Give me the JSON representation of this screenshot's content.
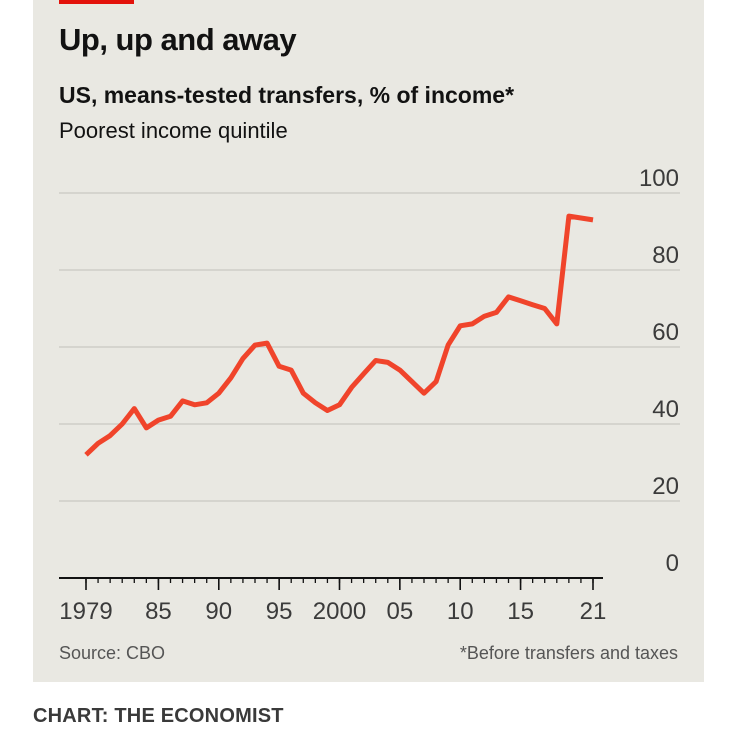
{
  "header": {
    "title": "Up, up and away",
    "subtitle": "US, means-tested transfers, % of income*",
    "subsubtitle": "Poorest income quintile"
  },
  "footer": {
    "source": "Source: CBO",
    "footnote": "*Before transfers and taxes",
    "credit": "CHART: THE ECONOMIST"
  },
  "colors": {
    "accent": "#e3120b",
    "line": "#f0442b",
    "background": "#e9e8e2"
  },
  "chart_data": {
    "type": "line",
    "title": "Up, up and away",
    "subtitle": "US, means-tested transfers, % of income*",
    "xlabel": "",
    "ylabel": "",
    "ylim": [
      0,
      100
    ],
    "xlim": [
      1979,
      2021
    ],
    "y_ticks": [
      0,
      20,
      40,
      60,
      80,
      100
    ],
    "y_tick_labels": [
      "0",
      "20",
      "40",
      "60",
      "80",
      "100"
    ],
    "x_ticks": [
      1979,
      1985,
      1990,
      1995,
      2000,
      2005,
      2010,
      2015,
      2021
    ],
    "x_tick_labels": [
      "1979",
      "85",
      "90",
      "95",
      "2000",
      "05",
      "10",
      "15",
      "21"
    ],
    "grid": true,
    "series": [
      {
        "name": "Poorest income quintile",
        "x": [
          1979,
          1980,
          1981,
          1982,
          1983,
          1984,
          1985,
          1986,
          1987,
          1988,
          1989,
          1990,
          1991,
          1992,
          1993,
          1994,
          1995,
          1996,
          1997,
          1998,
          1999,
          2000,
          2001,
          2002,
          2003,
          2004,
          2005,
          2006,
          2007,
          2008,
          2009,
          2010,
          2011,
          2012,
          2013,
          2014,
          2015,
          2016,
          2017,
          2018,
          2019,
          2020,
          2021
        ],
        "values": [
          32,
          35,
          37,
          40,
          44,
          39,
          41,
          42,
          46,
          45,
          45.5,
          48,
          52,
          57,
          60.5,
          61,
          55,
          54,
          48,
          45.5,
          43.5,
          45,
          49.5,
          53,
          56.5,
          56,
          54,
          51,
          48,
          51,
          60.5,
          65.5,
          66,
          68,
          69,
          73,
          72,
          71,
          70,
          66,
          94,
          93.5,
          93
        ]
      }
    ]
  }
}
